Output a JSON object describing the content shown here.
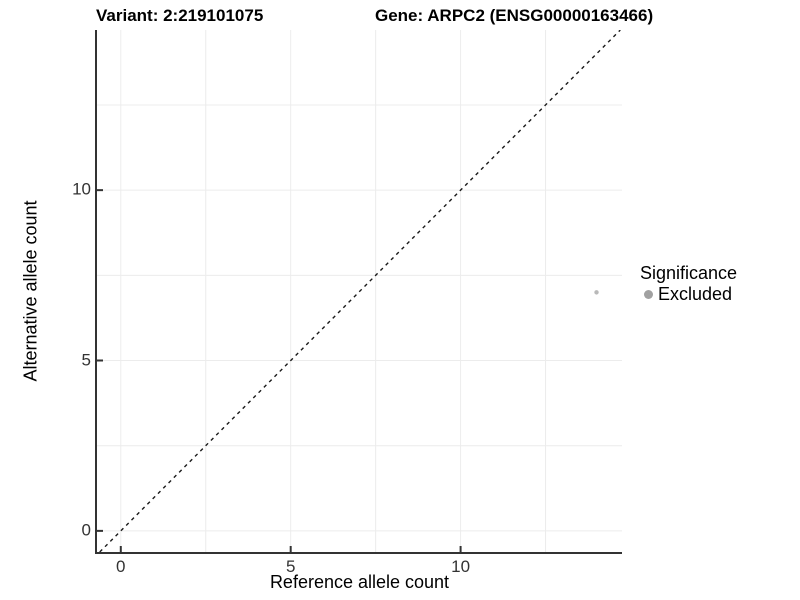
{
  "colors": {
    "background": "#ffffff",
    "gridline": "#ececec",
    "axis_line": "#333333",
    "tick_mark": "#333333",
    "tick_text": "#333333",
    "title_text": "#000000"
  },
  "chart_data": {
    "type": "scatter",
    "titles": {
      "left": "Variant: 2:219101075",
      "right": "Gene: ARPC2 (ENSG00000163466)"
    },
    "x_axis": {
      "label": "Reference allele count",
      "range": [
        -0.7,
        14.75
      ],
      "breaks": [
        0,
        5,
        10
      ],
      "break_labels": [
        "0",
        "5",
        "10"
      ],
      "gridlines": [
        0,
        2.5,
        5,
        7.5,
        10,
        12.5
      ]
    },
    "y_axis": {
      "label": "Alternative allele count",
      "range": [
        -0.62,
        14.7
      ],
      "breaks": [
        0,
        5,
        10
      ],
      "break_labels": [
        "0",
        "5",
        "10"
      ],
      "gridlines": [
        0,
        2.5,
        5,
        7.5,
        10,
        12.5
      ]
    },
    "identity_line": {
      "slope": 1,
      "intercept": 0,
      "style": "dashed",
      "color": "#1a1a1a"
    },
    "points": [
      {
        "x": 14,
        "y": 7,
        "significance": "Excluded",
        "color": "#b9b9b9",
        "radius": 2.2
      }
    ],
    "legend": {
      "title": "Significance",
      "position": "right",
      "items": [
        {
          "label": "Excluded",
          "color": "#a1a1a1",
          "marker": "circle"
        }
      ]
    },
    "grid": true
  }
}
